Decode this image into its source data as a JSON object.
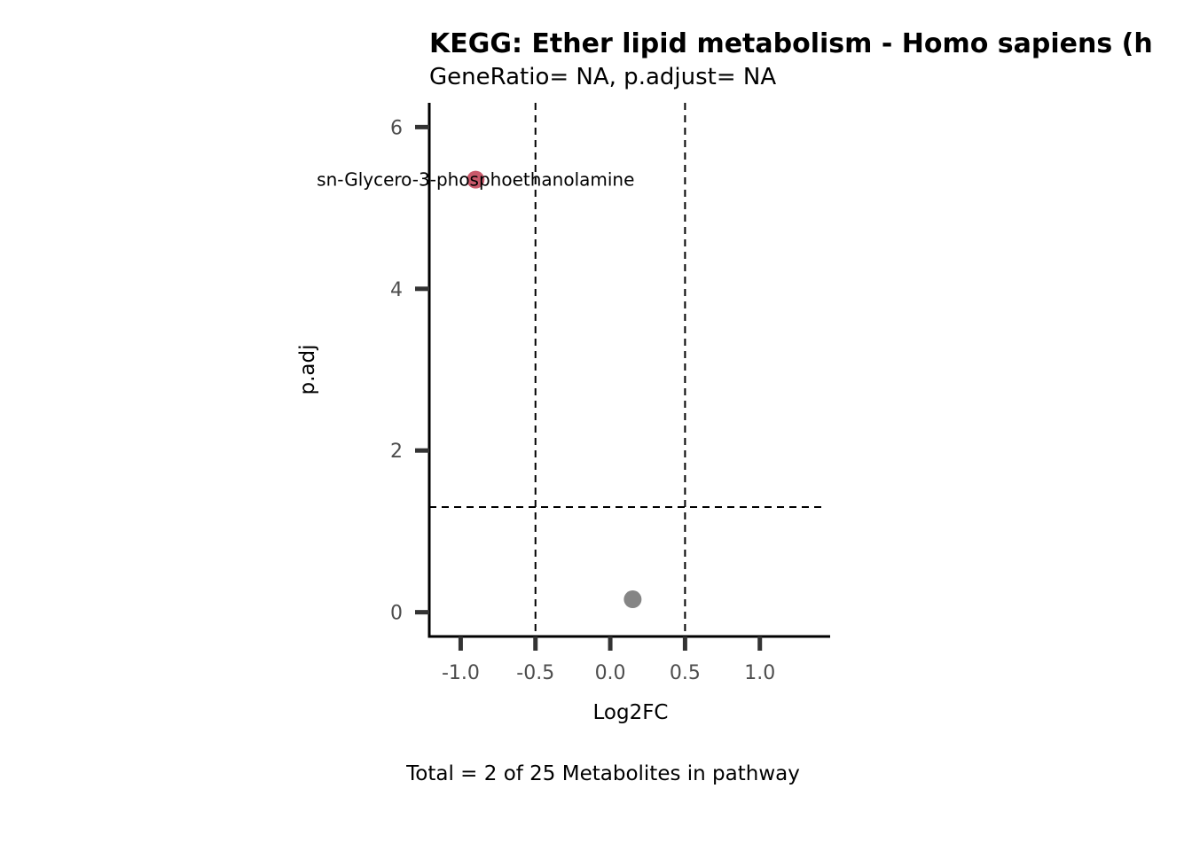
{
  "chart_data": {
    "type": "scatter",
    "title": "KEGG: Ether lipid metabolism - Homo sapiens (h",
    "subtitle": "GeneRatio= NA, p.adjust= NA",
    "xlabel": "Log2FC",
    "ylabel": "p.adj",
    "caption": "Total = 2 of 25 Metabolites in pathway",
    "xlim": [
      -1.21,
      1.47
    ],
    "ylim": [
      -0.3,
      6.3
    ],
    "x_ticks": [
      -1.0,
      -0.5,
      0.0,
      0.5,
      1.0
    ],
    "x_tick_labels": [
      "-1.0",
      "-0.5",
      "0.0",
      "0.5",
      "1.0"
    ],
    "y_ticks": [
      0,
      2,
      4,
      6
    ],
    "y_tick_labels": [
      "0",
      "2",
      "4",
      "6"
    ],
    "vlines": [
      -0.5,
      0.5
    ],
    "hlines": [
      1.3
    ],
    "grid": false,
    "points": [
      {
        "x": -0.9,
        "y": 5.35,
        "color": "#c9596b",
        "label": "sn-Glycero-3-phosphoethanolamine"
      },
      {
        "x": 0.15,
        "y": 0.16,
        "color": "#858585",
        "label": ""
      }
    ]
  }
}
